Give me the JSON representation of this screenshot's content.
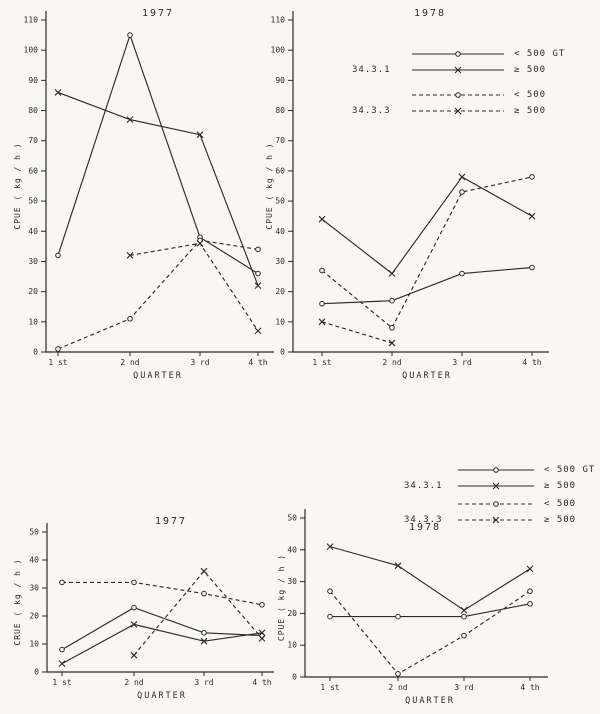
{
  "page": {
    "bg": "#f8f7f4",
    "ink": "#2b2b2b"
  },
  "legend_top": {
    "group1": "34.3.1",
    "group2": "34.3.3",
    "rows": [
      {
        "label": "< 500 GT",
        "line": "solid",
        "marker": "circle"
      },
      {
        "label": "≥ 500",
        "line": "solid",
        "marker": "x"
      },
      {
        "label": "< 500",
        "line": "dashed",
        "marker": "circle"
      },
      {
        "label": "≥ 500",
        "line": "dashed",
        "marker": "x"
      }
    ]
  },
  "legend_bottom": {
    "group1": "34.3.1",
    "group2": "34.3.3",
    "rows": [
      {
        "label": "< 500 GT",
        "line": "solid",
        "marker": "circle"
      },
      {
        "label": "≥ 500",
        "line": "solid",
        "marker": "x"
      },
      {
        "label": "< 500",
        "line": "dashed",
        "marker": "circle"
      },
      {
        "label": "≥ 500",
        "line": "dashed",
        "marker": "x"
      }
    ]
  },
  "chart_data": [
    {
      "id": "upper-1977",
      "type": "line",
      "title": "1977",
      "xlabel": "QUARTER",
      "ylabel": "CPUE ( kg / h )",
      "categories": [
        "1 st",
        "2 nd",
        "3 rd",
        "4 th"
      ],
      "ylim": [
        0,
        110
      ],
      "yticks": [
        0,
        10,
        20,
        30,
        40,
        50,
        60,
        70,
        80,
        90,
        100,
        110
      ],
      "grid": false,
      "legend_position": "outside-right",
      "series": [
        {
          "name": "34.3.1 < 500 GT",
          "line": "solid",
          "marker": "circle",
          "values": [
            32,
            105,
            38,
            26
          ]
        },
        {
          "name": "34.3.1 ≥ 500",
          "line": "solid",
          "marker": "x",
          "values": [
            86,
            77,
            72,
            22
          ]
        },
        {
          "name": "34.3.3 < 500",
          "line": "dashed",
          "marker": "circle",
          "values": [
            1,
            11,
            37,
            34
          ]
        },
        {
          "name": "34.3.3 ≥ 500",
          "line": "dashed",
          "marker": "x",
          "values": [
            null,
            32,
            36,
            7
          ]
        }
      ]
    },
    {
      "id": "upper-1978",
      "type": "line",
      "title": "1978",
      "xlabel": "QUARTER",
      "ylabel": "CPUE ( kg / h )",
      "categories": [
        "1 st",
        "2 nd",
        "3 rd",
        "4 th"
      ],
      "ylim": [
        0,
        110
      ],
      "yticks": [
        0,
        10,
        20,
        30,
        40,
        50,
        60,
        70,
        80,
        90,
        100,
        110
      ],
      "grid": false,
      "legend_position": "outside-right",
      "series": [
        {
          "name": "34.3.1 < 500 GT",
          "line": "solid",
          "marker": "circle",
          "values": [
            16,
            17,
            26,
            28
          ]
        },
        {
          "name": "34.3.1 ≥ 500",
          "line": "solid",
          "marker": "x",
          "values": [
            44,
            26,
            58,
            45
          ]
        },
        {
          "name": "34.3.3 < 500",
          "line": "dashed",
          "marker": "circle",
          "values": [
            27,
            8,
            53,
            58
          ]
        },
        {
          "name": "34.3.3 ≥ 500",
          "line": "dashed",
          "marker": "x",
          "values": [
            10,
            3,
            null,
            null
          ]
        }
      ]
    },
    {
      "id": "lower-1977",
      "type": "line",
      "title": "1977",
      "xlabel": "QUARTER",
      "ylabel": "CRUE ( kg / h )",
      "categories": [
        "1 st",
        "2 nd",
        "3 rd",
        "4 th"
      ],
      "ylim": [
        0,
        50
      ],
      "yticks": [
        0,
        10,
        20,
        30,
        40,
        50
      ],
      "grid": false,
      "legend_position": "outside-right",
      "series": [
        {
          "name": "34.3.1 < 500 GT",
          "line": "solid",
          "marker": "circle",
          "values": [
            8,
            23,
            14,
            13
          ]
        },
        {
          "name": "34.3.1 ≥ 500",
          "line": "solid",
          "marker": "x",
          "values": [
            3,
            17,
            11,
            14
          ]
        },
        {
          "name": "34.3.3 < 500",
          "line": "dashed",
          "marker": "circle",
          "values": [
            32,
            32,
            28,
            24
          ]
        },
        {
          "name": "34.3.3 ≥ 500",
          "line": "dashed",
          "marker": "x",
          "values": [
            null,
            6,
            36,
            12
          ]
        }
      ]
    },
    {
      "id": "lower-1978",
      "type": "line",
      "title": "1978",
      "xlabel": "QUARTER",
      "ylabel": "CPUE ( kg / h )",
      "categories": [
        "1 st",
        "2 nd",
        "3 rd",
        "4 th"
      ],
      "ylim": [
        0,
        50
      ],
      "yticks": [
        0,
        10,
        20,
        30,
        40,
        50
      ],
      "grid": false,
      "legend_position": "outside-right",
      "series": [
        {
          "name": "34.3.1 < 500 GT",
          "line": "solid",
          "marker": "circle",
          "values": [
            19,
            19,
            19,
            23
          ]
        },
        {
          "name": "34.3.1 ≥ 500",
          "line": "solid",
          "marker": "x",
          "values": [
            41,
            35,
            21,
            34
          ]
        },
        {
          "name": "34.3.3 < 500",
          "line": "dashed",
          "marker": "circle",
          "values": [
            27,
            1,
            13,
            27
          ]
        }
      ]
    }
  ]
}
